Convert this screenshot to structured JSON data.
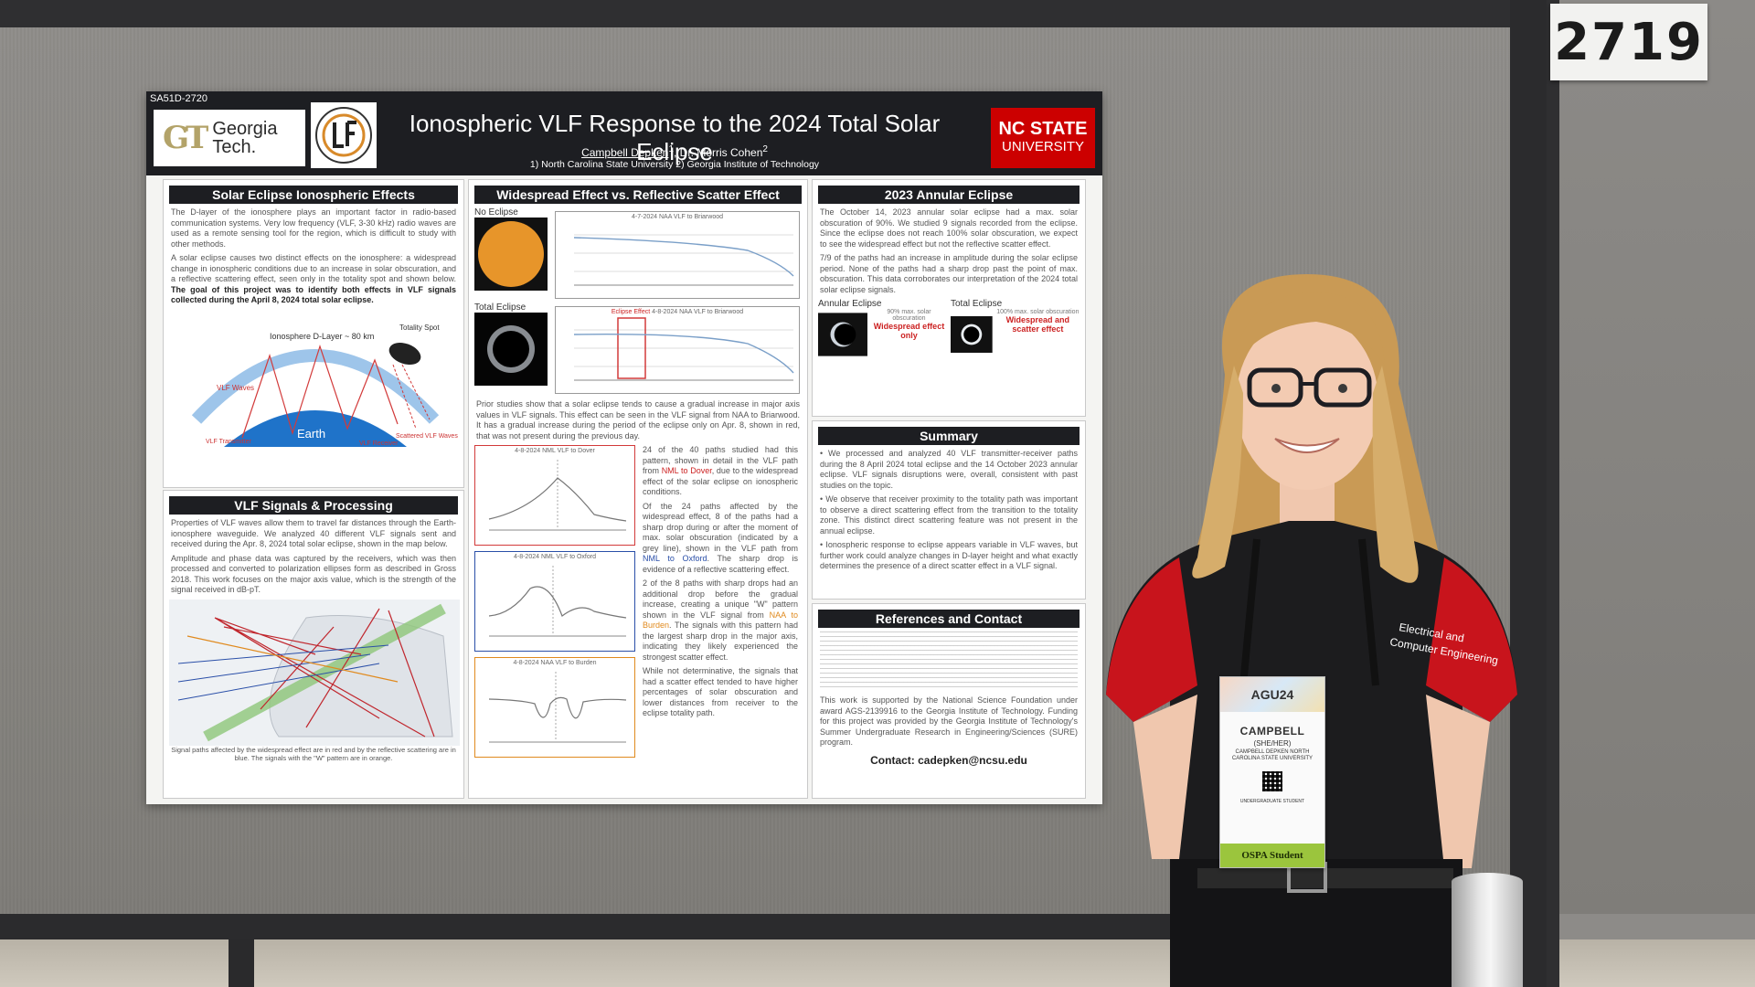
{
  "booth": {
    "number": "2719"
  },
  "poster": {
    "session_id": "SA51D-2720",
    "title": "Ionospheric VLF Response to the 2024 Total Solar Eclipse",
    "author_1": "Campbell Depken",
    "author_1_sup": "1",
    "author_2": ", Dr. Morris Cohen",
    "author_2_sup": "2",
    "affiliations": "1) North Carolina State University 2) Georgia Institute of Technology",
    "left_logo": {
      "mark": "GT",
      "line1": "Georgia",
      "line2": "Tech."
    },
    "right_logo": {
      "line1": "NC STATE",
      "line2": "UNIVERSITY"
    },
    "sections": {
      "solar_effects": {
        "title": "Solar Eclipse Ionospheric Effects",
        "p1": "The D-layer of the ionosphere plays an important factor in radio-based communication systems. Very low frequency (VLF, 3-30 kHz) radio waves are used as a remote sensing tool for the region, which is difficult to study with other methods.",
        "p2": "A solar eclipse causes two distinct effects on the ionosphere: a widespread change in ionospheric conditions due to an increase in solar obscuration, and a reflective scattering effect, seen only in the totality spot and shown below.",
        "p2_bold": "The goal of this project was to identify both effects in VLF signals collected during the April 8, 2024 total solar eclipse.",
        "diagram": {
          "layer": "Ionosphere D-Layer ~ 80 km",
          "spot": "Totality Spot",
          "wave": "VLF Waves",
          "transmitter": "VLF Transmitter",
          "earth": "Earth",
          "scattered": "Scattered VLF Waves",
          "receiver": "VLF Receiver"
        }
      },
      "vlf_signals": {
        "title": "VLF Signals & Processing",
        "p1": "Properties of VLF waves allow them to travel far distances through the Earth-ionosphere waveguide. We analyzed 40 different VLF signals sent and received during the Apr. 8, 2024 total solar eclipse, shown in the map below.",
        "p2": "Amplitude and phase data was captured by the receivers, which was then processed and converted to polarization ellipses form as described in Gross 2018. This work focuses on the major axis value, which is the strength of the signal received in dB-pT.",
        "caption": "Signal paths affected by the widespread effect are in red and by the reflective scattering are in blue. The signals with the \"W\" pattern are in orange."
      },
      "widespread": {
        "title": "Widespread Effect vs. Reflective Scatter Effect",
        "no_eclipse": "No Eclipse",
        "total_eclipse": "Total Eclipse",
        "plot1_title": "4-7-2024 NAA VLF to Briarwood",
        "plot2_title": "4-8-2024 NAA VLF to Briarwood",
        "plot2_annot": "Eclipse Effect",
        "p1": "Prior studies show that a solar eclipse tends to cause a gradual increase in major axis values in VLF signals. This effect can be seen in the VLF signal from NAA to Briarwood. It has a gradual increase during the period of the eclipse only on Apr. 8, shown in red, that was not present during the previous day.",
        "plot3_title": "4-8-2024 NML VLF to Dover",
        "plot4_title": "4-8-2024 NML VLF to Oxford",
        "plot5_title": "4-8-2024 NAA VLF to Burden",
        "p2a": "24 of the 40 paths studied had this pattern, shown in detail in the VLF path from",
        "p2_red": "NML to Dover",
        "p2b": ", due to the widespread effect of the solar eclipse on ionospheric conditions.",
        "p3a": "Of the 24 paths affected by the widespread effect, 8 of the paths had a sharp drop during or after the moment of max. solar obscuration (indicated by a grey line), shown in the VLF path from",
        "p3_blue": "NML to Oxford",
        "p3b": ". The sharp drop is evidence of a reflective scattering effect.",
        "p4a": "2 of the 8 paths with sharp drops had an additional drop before the gradual increase, creating a unique \"W\" pattern shown in the VLF signal from",
        "p4_orange": "NAA to Burden",
        "p4b": ". The signals with this pattern had the largest sharp drop in the major axis, indicating they likely experienced the strongest scatter effect.",
        "p5": "While not determinative, the signals that had a scatter effect tended to have higher percentages of solar obscuration and lower distances from receiver to the eclipse totality path."
      },
      "annular": {
        "title": "2023 Annular Eclipse",
        "p1": "The October 14, 2023 annular solar eclipse had a max. solar obscuration of 90%. We studied 9 signals recorded from the eclipse. Since the eclipse does not reach 100% solar obscuration, we expect to see the widespread effect but not the reflective scatter effect.",
        "p2": "7/9 of the paths had an increase in amplitude during the solar eclipse period. None of the paths had a sharp drop past the point of max. obscuration. This data corroborates our interpretation of the 2024 total solar eclipse signals.",
        "annular_label": "Annular Eclipse",
        "annular_obsc": "90% max. solar obscuration",
        "annular_effect": "Widespread effect only",
        "total_label": "Total Eclipse",
        "total_obsc": "100% max. solar obscuration",
        "total_effect": "Widespread and scatter effect"
      },
      "summary": {
        "title": "Summary",
        "b1": "We processed and analyzed 40 VLF transmitter-receiver paths during the 8 April 2024 total eclipse and the 14 October 2023 annular eclipse. VLF signals disruptions were, overall, consistent with past studies on the topic.",
        "b2": "We observe that receiver proximity to the totality path was important to observe a direct scattering effect from the transition to the totality zone. This distinct direct scattering feature was not present in the annual eclipse.",
        "b3": "Ionospheric response to eclipse appears variable in VLF waves, but further work could analyze changes in D-layer height and what exactly determines the presence of a direct scatter effect in a VLF signal."
      },
      "references": {
        "title": "References and Contact",
        "support": "This work is supported by the National Science Foundation under award AGS-2139916 to the Georgia Institute of Technology. Funding for this project was provided by the Georgia Institute of Technology's Summer Undergraduate Research in Engineering/Sciences (SURE) program.",
        "contact": "Contact: cadepken@ncsu.edu"
      }
    }
  },
  "badge": {
    "event": "AGU24",
    "name": "CAMPBELL",
    "pronouns": "(SHE/HER)",
    "details": "CAMPBELL DEPKEN NORTH CAROLINA STATE UNIVERSITY",
    "category": "UNDERGRADUATE STUDENT",
    "footer": "OSPA Student"
  },
  "shirt": {
    "logo_line1": "Electrical and",
    "logo_line2": "Computer Engineering"
  },
  "colors": {
    "poster_header": "#1d1e22",
    "ncsu_red": "#cc0000",
    "gt_gold": "#b3a369",
    "shirt_black": "#1c1c1e",
    "shirt_red": "#c8141c",
    "badge_green": "#9bc53d"
  }
}
